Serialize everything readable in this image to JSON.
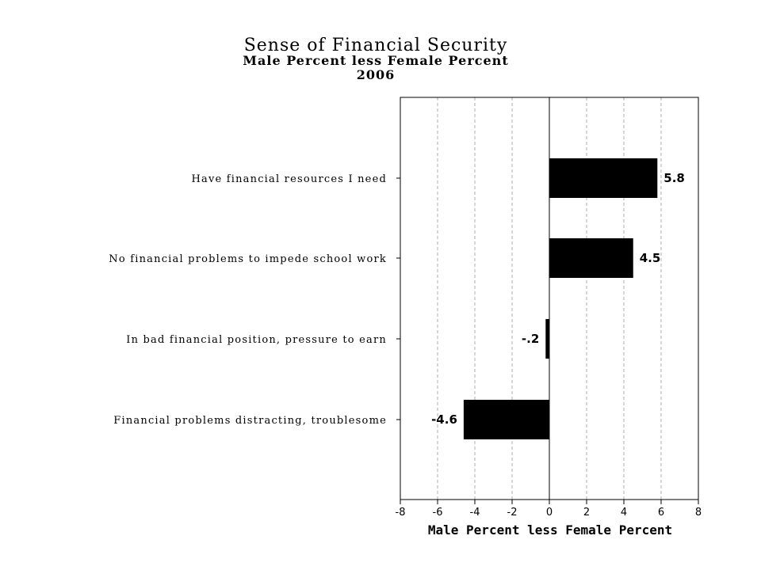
{
  "chart_data": {
    "type": "bar",
    "orientation": "horizontal",
    "title": "Sense of Financial Security",
    "subtitle": "Male Percent less Female Percent",
    "subtitle2": "2006",
    "xlabel": "Male Percent less Female Percent",
    "ylabel": "",
    "categories": [
      "Have financial resources I need",
      "No financial problems to impede school work",
      "In bad financial position, pressure to earn",
      "Financial problems distracting, troublesome"
    ],
    "values": [
      5.8,
      4.5,
      -0.2,
      -4.6
    ],
    "data_labels": [
      "5.8",
      "4.5",
      "-.2",
      "-4.6"
    ],
    "xlim": [
      -8,
      8
    ],
    "xticks": [
      -8,
      -6,
      -4,
      -2,
      0,
      2,
      4,
      6,
      8
    ],
    "xtick_labels": [
      "-8",
      "-6",
      "-4",
      "-2",
      "0",
      "2",
      "4",
      "6",
      "8"
    ],
    "grid": "vertical dashed",
    "bar_color": "#000000"
  }
}
